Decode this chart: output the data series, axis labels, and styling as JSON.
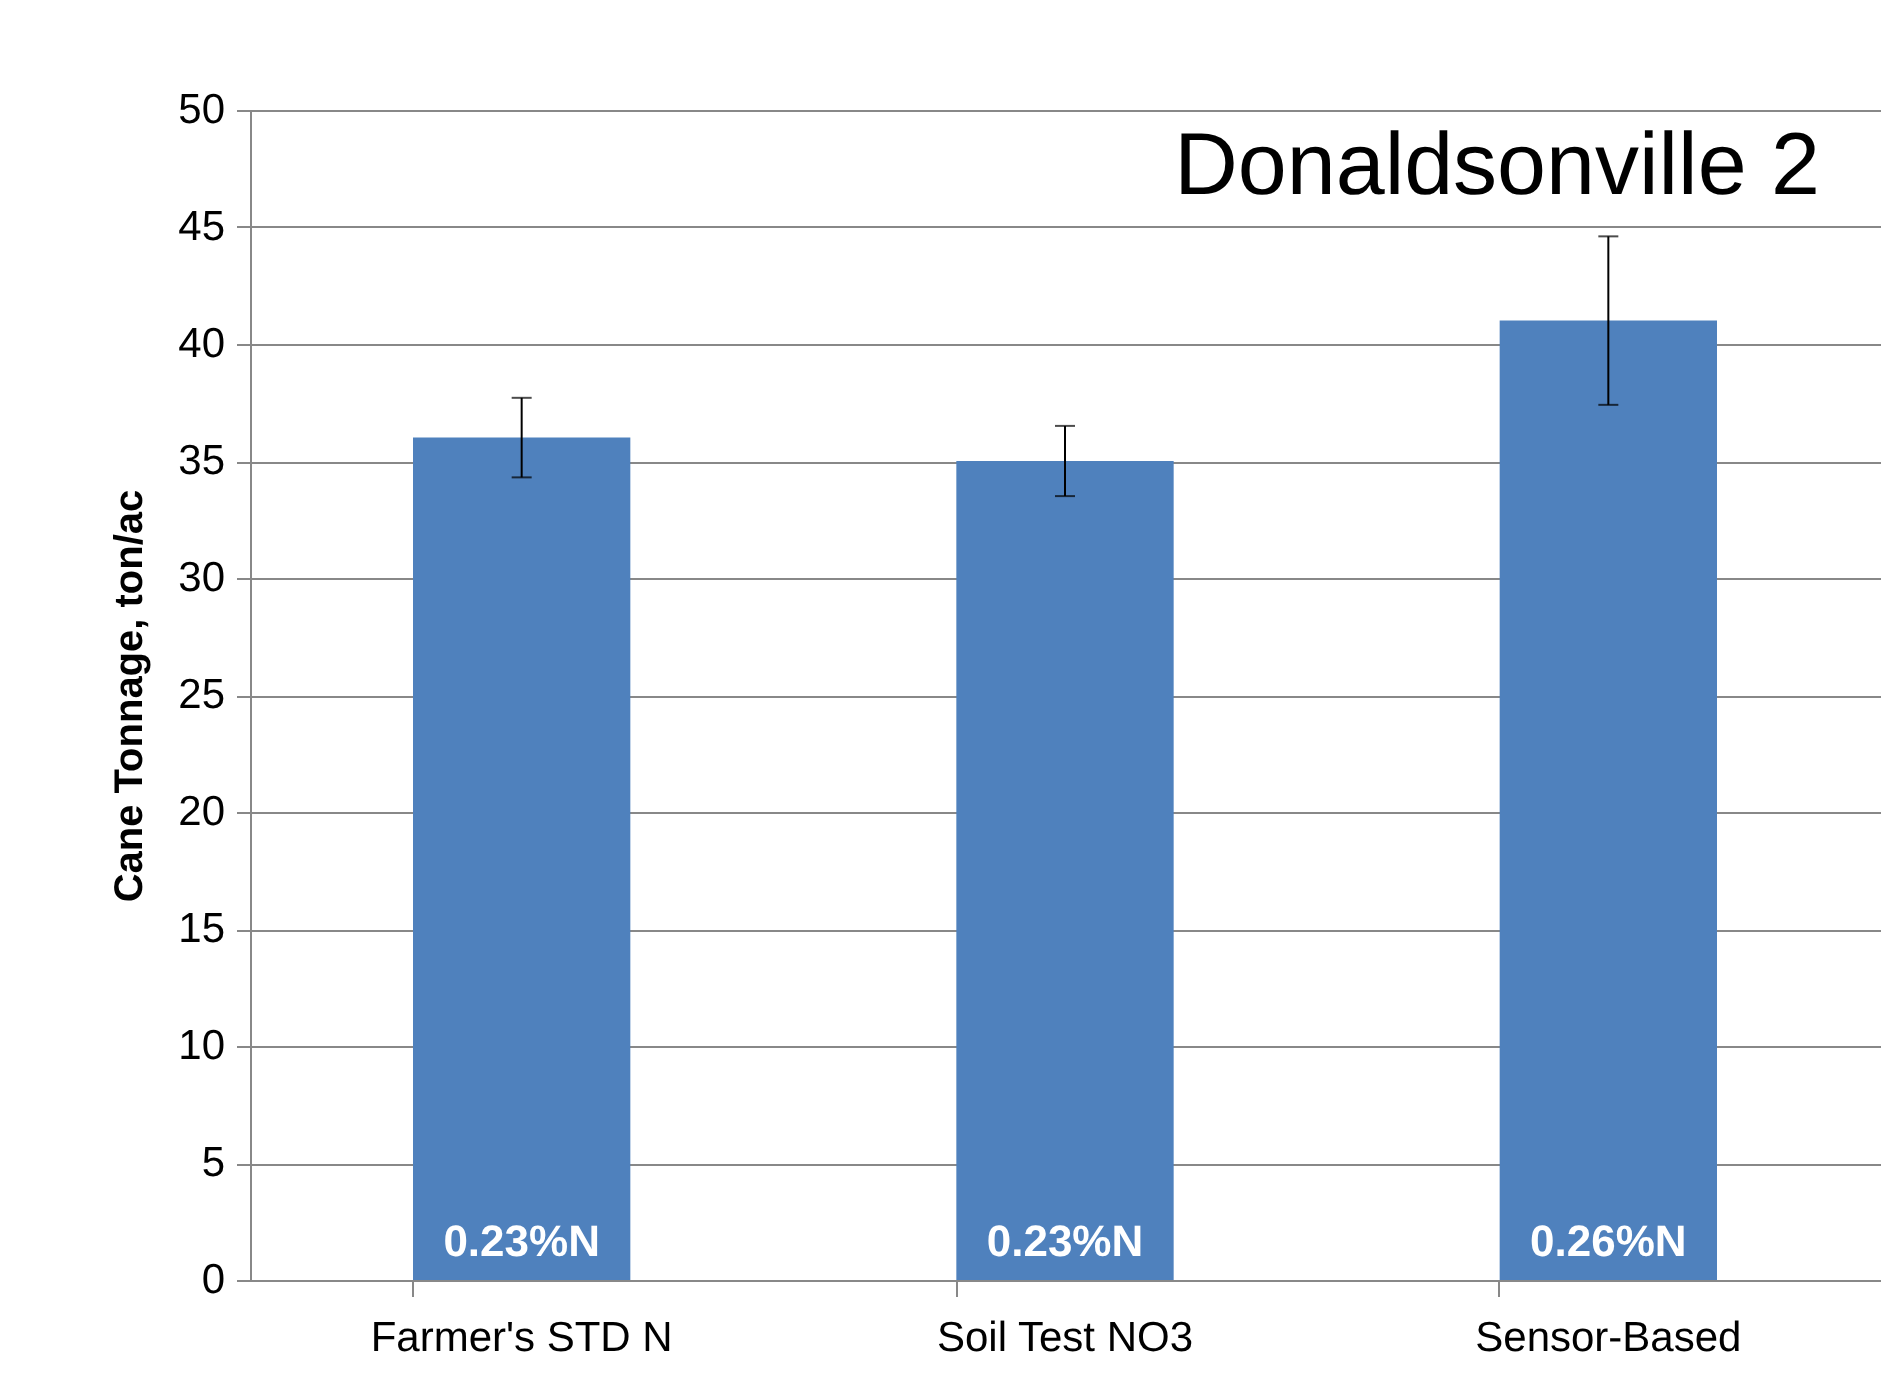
{
  "chart_data": {
    "type": "bar",
    "title": "Donaldsonville 2",
    "ylabel": "Cane Tonnage, ton/ac",
    "categories": [
      "Farmer's STD N",
      "Soil Test NO3",
      "Sensor-Based"
    ],
    "values": [
      36,
      35,
      41
    ],
    "color": "#4f81bd",
    "errors": [
      1.7,
      1.5,
      3.6
    ],
    "ylim": [
      0,
      50
    ],
    "yticks": [
      0,
      5,
      10,
      15,
      20,
      25,
      30,
      35,
      40,
      45,
      50
    ],
    "grid": "y",
    "annotations": [
      "0.23%N",
      "0.23%N",
      "0.26%N"
    ]
  }
}
